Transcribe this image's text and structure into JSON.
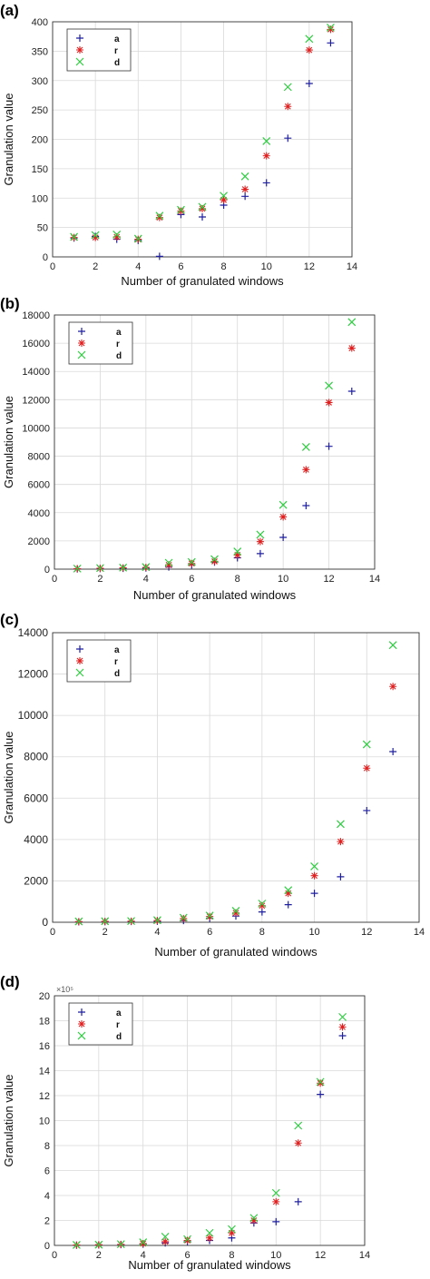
{
  "chart_data": [
    {
      "type": "scatter",
      "panel_label": "(a)",
      "xlabel": "Number of granulated windows",
      "ylabel": "Granulation value",
      "xlim": [
        0,
        14
      ],
      "ylim": [
        0,
        400
      ],
      "x_ticks": [
        0,
        2,
        4,
        6,
        8,
        10,
        12,
        14
      ],
      "y_ticks": [
        0,
        50,
        100,
        150,
        200,
        250,
        300,
        350,
        400
      ],
      "y_scale_label": "",
      "grid": true,
      "legend_position": "top-left",
      "series": [
        {
          "name": "a",
          "marker": "plus",
          "color": "#1f1fa0",
          "x": [
            1,
            2,
            3,
            4,
            5,
            6,
            7,
            8,
            9,
            10,
            11,
            12,
            13
          ],
          "y": [
            32,
            35,
            30,
            28,
            1,
            72,
            68,
            88,
            103,
            126,
            202,
            295,
            364
          ]
        },
        {
          "name": "r",
          "marker": "star",
          "color": "#e02020",
          "x": [
            1,
            2,
            3,
            4,
            5,
            6,
            7,
            8,
            9,
            10,
            11,
            12,
            13
          ],
          "y": [
            33,
            33,
            34,
            30,
            67,
            78,
            82,
            97,
            115,
            172,
            256,
            352,
            387
          ]
        },
        {
          "name": "d",
          "marker": "x",
          "color": "#2ecc40",
          "x": [
            1,
            2,
            3,
            4,
            5,
            6,
            7,
            8,
            9,
            10,
            11,
            12,
            13
          ],
          "y": [
            34,
            37,
            38,
            31,
            70,
            80,
            85,
            104,
            137,
            197,
            289,
            371,
            390
          ]
        }
      ]
    },
    {
      "type": "scatter",
      "panel_label": "(b)",
      "xlabel": "Number of granulated windows",
      "ylabel": "Granulation value",
      "xlim": [
        0,
        14
      ],
      "ylim": [
        0,
        18000
      ],
      "x_ticks": [
        0,
        2,
        4,
        6,
        8,
        10,
        12,
        14
      ],
      "y_ticks": [
        0,
        2000,
        4000,
        6000,
        8000,
        10000,
        12000,
        14000,
        16000,
        18000
      ],
      "y_scale_label": "",
      "grid": true,
      "legend_position": "top-left",
      "series": [
        {
          "name": "a",
          "marker": "plus",
          "color": "#1f1fa0",
          "x": [
            1,
            2,
            3,
            4,
            5,
            6,
            7,
            8,
            9,
            10,
            11,
            12,
            13
          ],
          "y": [
            20,
            40,
            60,
            80,
            150,
            300,
            500,
            800,
            1100,
            2250,
            4500,
            8700,
            12600
          ]
        },
        {
          "name": "r",
          "marker": "star",
          "color": "#e02020",
          "x": [
            1,
            2,
            3,
            4,
            5,
            6,
            7,
            8,
            9,
            10,
            11,
            12,
            13
          ],
          "y": [
            30,
            60,
            90,
            120,
            300,
            400,
            550,
            1000,
            1950,
            3700,
            7050,
            11800,
            15650
          ]
        },
        {
          "name": "d",
          "marker": "x",
          "color": "#2ecc40",
          "x": [
            1,
            2,
            3,
            4,
            5,
            6,
            7,
            8,
            9,
            10,
            11,
            12,
            13
          ],
          "y": [
            40,
            80,
            110,
            150,
            450,
            500,
            700,
            1250,
            2450,
            4550,
            8650,
            13000,
            17500
          ]
        }
      ]
    },
    {
      "type": "scatter",
      "panel_label": "(c)",
      "xlabel": "Number of granulated windows",
      "ylabel": "Granulation value",
      "xlim": [
        0,
        14
      ],
      "ylim": [
        0,
        14000
      ],
      "x_ticks": [
        0,
        2,
        4,
        6,
        8,
        10,
        12,
        14
      ],
      "y_ticks": [
        0,
        2000,
        4000,
        6000,
        8000,
        10000,
        12000,
        14000
      ],
      "y_scale_label": "",
      "grid": true,
      "legend_position": "top-left",
      "series": [
        {
          "name": "a",
          "marker": "plus",
          "color": "#1f1fa0",
          "x": [
            1,
            2,
            3,
            4,
            5,
            6,
            7,
            8,
            9,
            10,
            11,
            12,
            13
          ],
          "y": [
            20,
            30,
            40,
            50,
            80,
            200,
            300,
            500,
            850,
            1400,
            2200,
            5400,
            8250
          ]
        },
        {
          "name": "r",
          "marker": "star",
          "color": "#e02020",
          "x": [
            1,
            2,
            3,
            4,
            5,
            6,
            7,
            8,
            9,
            10,
            11,
            12,
            13
          ],
          "y": [
            30,
            40,
            50,
            80,
            180,
            280,
            450,
            800,
            1400,
            2250,
            3900,
            7450,
            11400
          ]
        },
        {
          "name": "d",
          "marker": "x",
          "color": "#2ecc40",
          "x": [
            1,
            2,
            3,
            4,
            5,
            6,
            7,
            8,
            9,
            10,
            11,
            12,
            13
          ],
          "y": [
            40,
            50,
            60,
            100,
            220,
            320,
            550,
            900,
            1550,
            2700,
            4750,
            8600,
            13400
          ]
        }
      ]
    },
    {
      "type": "scatter",
      "panel_label": "(d)",
      "xlabel": "Number of granulated windows",
      "ylabel": "Granulation value",
      "xlim": [
        0,
        14
      ],
      "ylim": [
        0,
        20
      ],
      "x_ticks": [
        0,
        2,
        4,
        6,
        8,
        10,
        12,
        14
      ],
      "y_ticks": [
        0,
        2,
        4,
        6,
        8,
        10,
        12,
        14,
        16,
        18,
        20
      ],
      "y_scale_label": "×10⁵",
      "grid": true,
      "legend_position": "top-left",
      "series": [
        {
          "name": "a",
          "marker": "plus",
          "color": "#1f1fa0",
          "x": [
            1,
            2,
            3,
            4,
            5,
            6,
            7,
            8,
            9,
            10,
            11,
            12,
            13
          ],
          "y": [
            0.02,
            0.04,
            0.06,
            0.1,
            0.2,
            0.3,
            0.4,
            0.6,
            1.8,
            1.9,
            3.5,
            12.1,
            16.8
          ]
        },
        {
          "name": "r",
          "marker": "star",
          "color": "#e02020",
          "x": [
            1,
            2,
            3,
            4,
            5,
            6,
            7,
            8,
            9,
            10,
            11,
            12,
            13
          ],
          "y": [
            0.03,
            0.05,
            0.08,
            0.15,
            0.3,
            0.4,
            0.6,
            1.0,
            2.0,
            3.5,
            8.2,
            13.0,
            17.5
          ]
        },
        {
          "name": "d",
          "marker": "x",
          "color": "#2ecc40",
          "x": [
            1,
            2,
            3,
            4,
            5,
            6,
            7,
            8,
            9,
            10,
            11,
            12,
            13
          ],
          "y": [
            0.04,
            0.06,
            0.1,
            0.25,
            0.7,
            0.5,
            1.0,
            1.3,
            2.2,
            4.2,
            9.6,
            13.1,
            18.3
          ]
        }
      ]
    }
  ]
}
